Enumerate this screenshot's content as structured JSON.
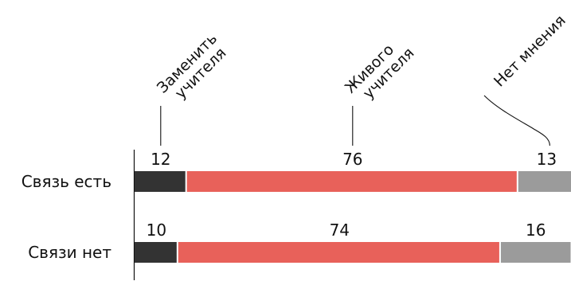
{
  "chart_data": {
    "type": "bar",
    "orientation": "horizontal",
    "stacked": true,
    "categories": [
      "Связь есть",
      "Связи нет"
    ],
    "series": [
      {
        "name": "Заменить учителя",
        "values": [
          12,
          10
        ],
        "color": "#333333"
      },
      {
        "name": "Живого учителя",
        "values": [
          76,
          74
        ],
        "color": "#e8615a"
      },
      {
        "name": "Нет мнения",
        "values": [
          13,
          16
        ],
        "color": "#9b9b9b"
      }
    ],
    "data_labels": [
      [
        "12",
        "76",
        "13"
      ],
      [
        "10",
        "74",
        "16"
      ]
    ],
    "legend": {
      "placement": "top",
      "entries": [
        {
          "lines": [
            "Заменить",
            "учителя"
          ]
        },
        {
          "lines": [
            "Живого",
            "учителя"
          ]
        },
        {
          "lines": [
            "Нет мнения"
          ]
        }
      ]
    },
    "title": "",
    "xlabel": "",
    "ylabel": "",
    "grid": false
  }
}
